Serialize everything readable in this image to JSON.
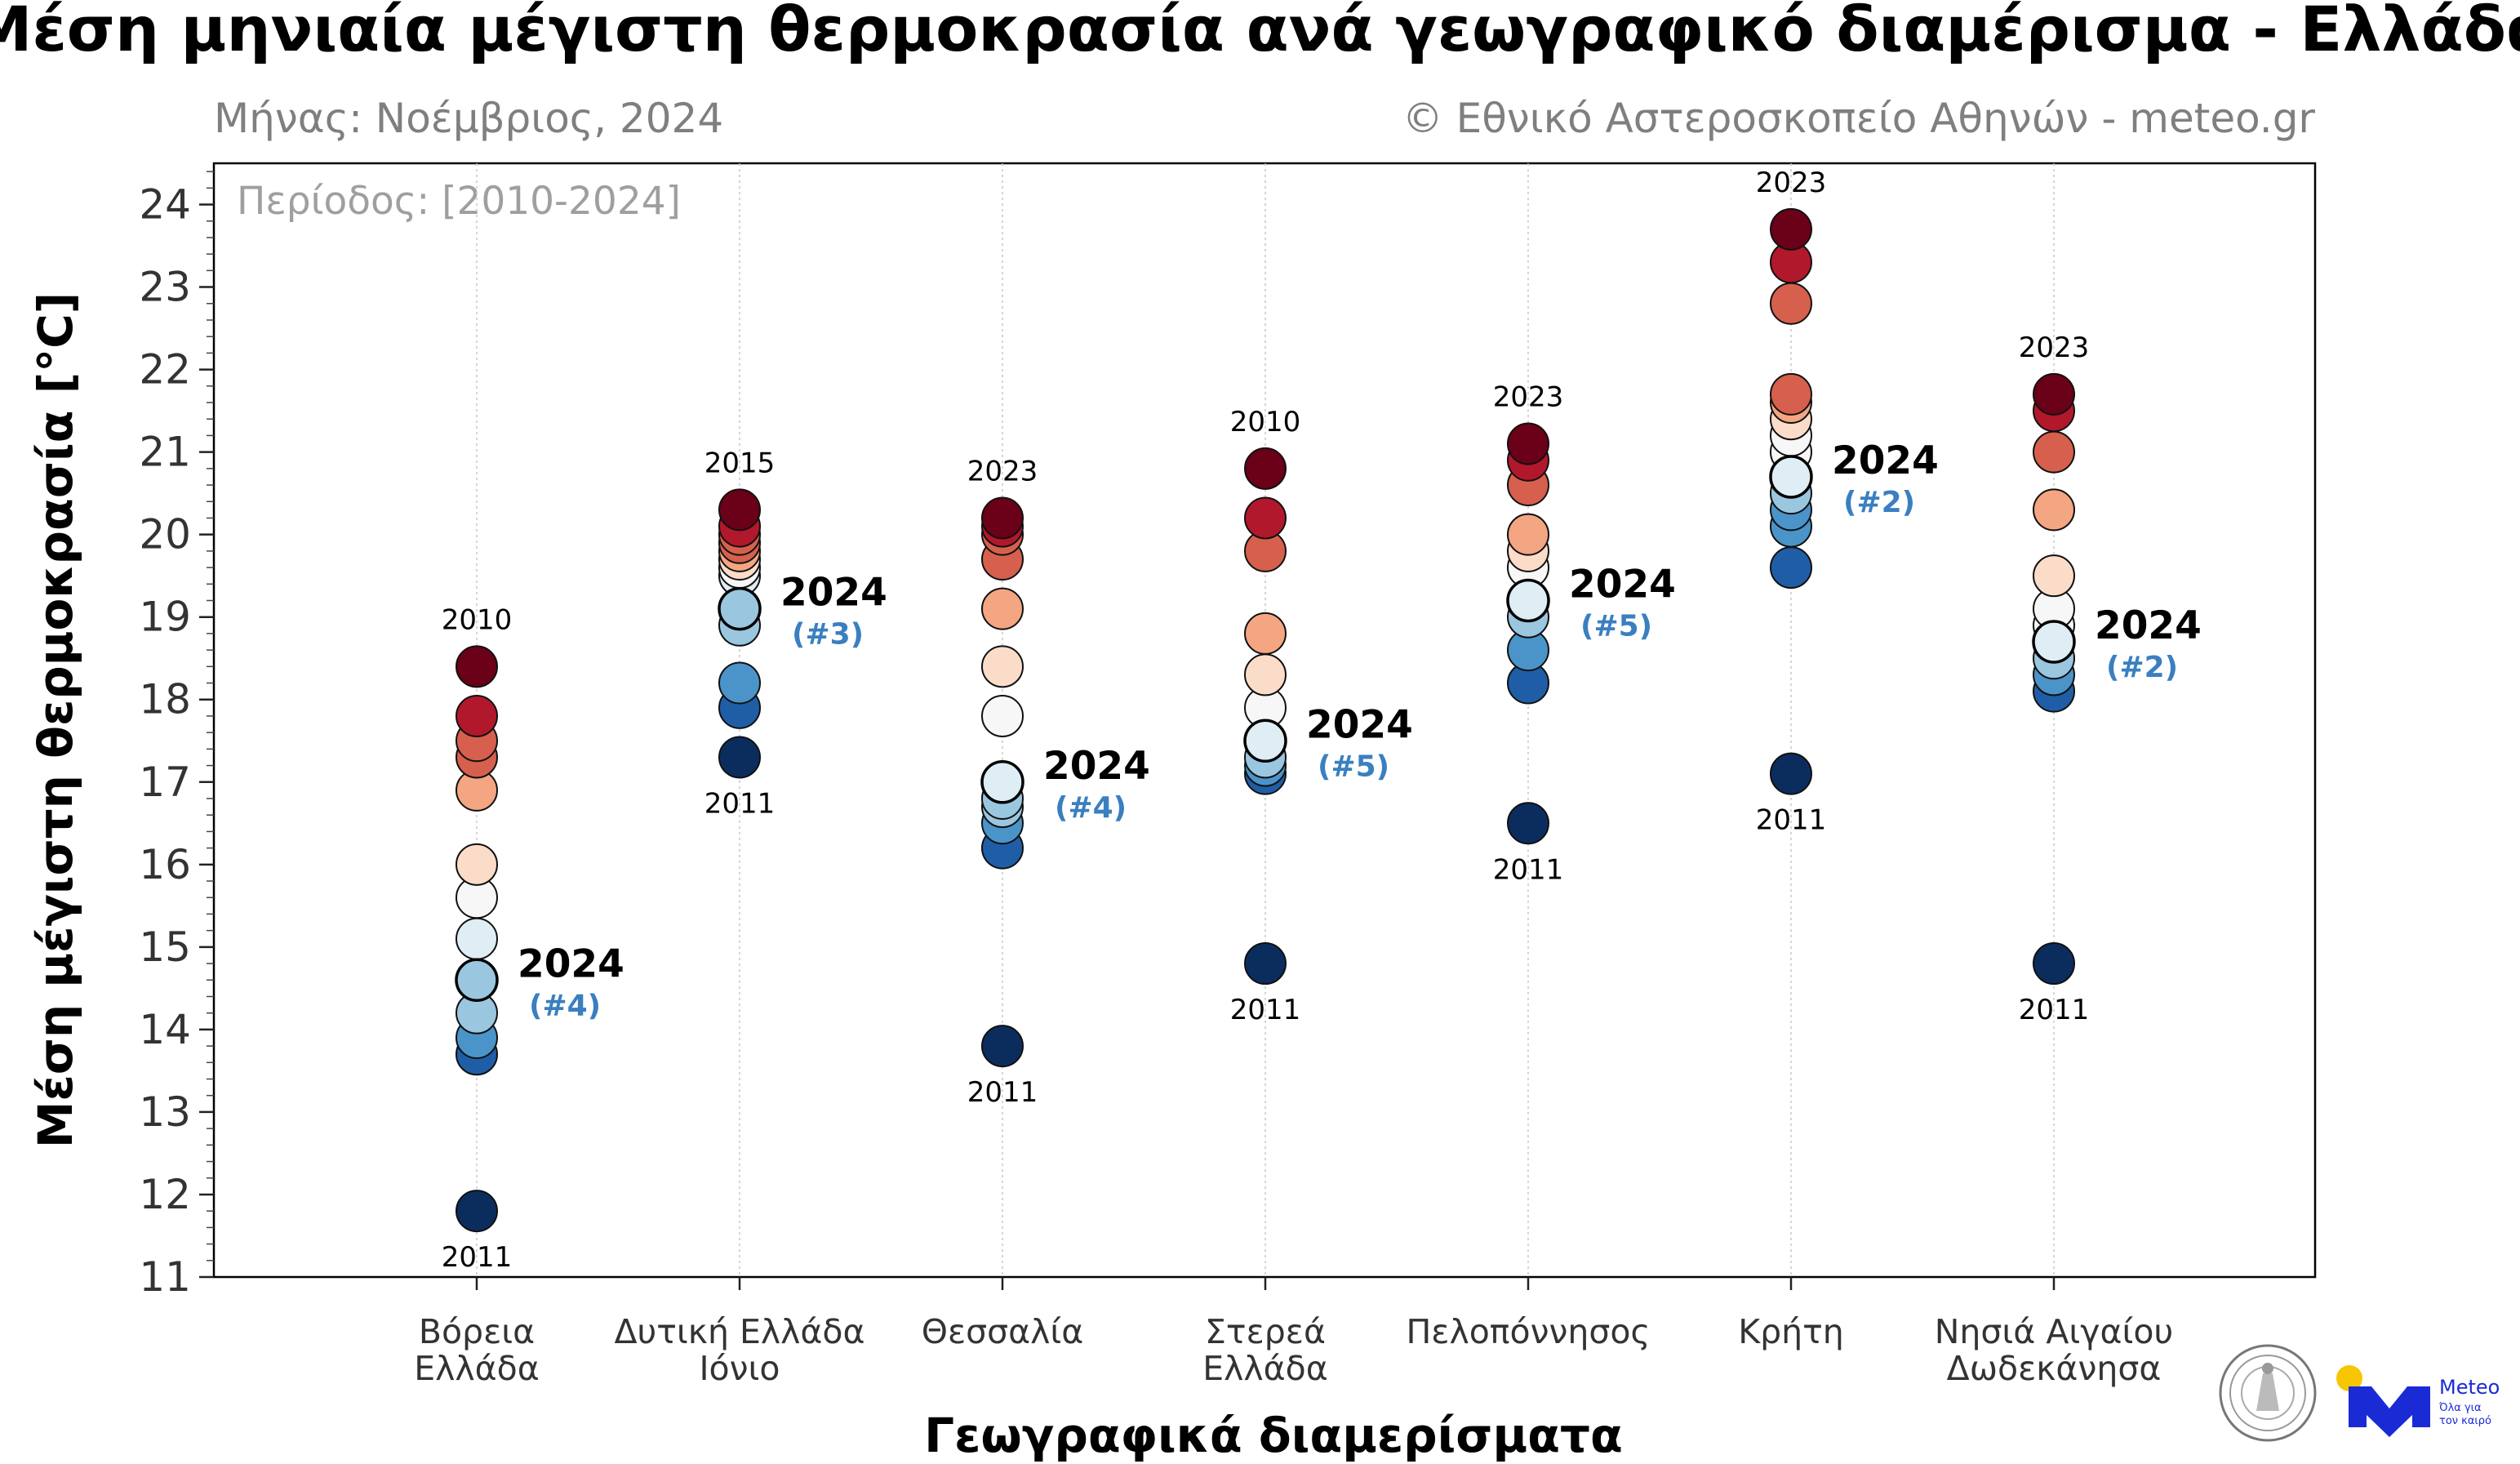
{
  "title": "Μέση μηνιαία μέγιστη θερμοκρασία ανά γεωγραφικό διαμέρισμα - Ελλάδα",
  "subtitle_left": "Μήνας: Νοέμβριος, 2024",
  "subtitle_right": "© Εθνικό Αστεροσκοπείο Αθηνών - meteo.gr",
  "logos": {
    "meteo_name": "Meteo",
    "meteo_slogan_1": "Όλα για",
    "meteo_slogan_2": "τον καιρό"
  },
  "chart_data": {
    "type": "scatter",
    "period_label": "Περίοδος: [2010-2024]",
    "xlabel": "Γεωγραφικά διαμερίσματα",
    "ylabel": "Μέση μέγιστη θερμοκρασία [°C]",
    "ylim": [
      11,
      24.5
    ],
    "yticks": [
      "11",
      "12",
      "13",
      "14",
      "15",
      "16",
      "17",
      "18",
      "19",
      "20",
      "21",
      "22",
      "23",
      "24"
    ],
    "current_year_label": "2024",
    "colormap": [
      "#0b2d5e",
      "#1f5ea6",
      "#4a94c9",
      "#9ac6e0",
      "#dfedf5",
      "#f7f7f7",
      "#fbdcc9",
      "#f4a582",
      "#d6604d",
      "#b2182b",
      "#6b0019"
    ],
    "regions": [
      {
        "name_lines": [
          "Βόρεια",
          "Ελλάδα"
        ],
        "values": [
          11.8,
          13.7,
          13.9,
          14.2,
          14.6,
          15.1,
          15.6,
          16.0,
          16.9,
          17.3,
          17.5,
          17.8,
          18.4
        ],
        "current": 14.6,
        "rank": "(#4)",
        "max_year": "2010",
        "min_year": "2011"
      },
      {
        "name_lines": [
          "Δυτική Ελλάδα",
          "Ιόνιο"
        ],
        "values": [
          17.3,
          17.9,
          18.2,
          18.9,
          19.1,
          19.5,
          19.6,
          19.7,
          19.8,
          19.9,
          20.0,
          20.1,
          20.3
        ],
        "current": 19.1,
        "rank": "(#3)",
        "max_year": "2015",
        "min_year": "2011"
      },
      {
        "name_lines": [
          "Θεσσαλία"
        ],
        "values": [
          13.8,
          16.2,
          16.5,
          16.7,
          16.8,
          17.0,
          17.8,
          18.4,
          19.1,
          19.7,
          20.0,
          20.1,
          20.2
        ],
        "current": 17.0,
        "rank": "(#4)",
        "max_year": "2023",
        "min_year": "2011"
      },
      {
        "name_lines": [
          "Στερεά",
          "Ελλάδα"
        ],
        "values": [
          14.8,
          17.1,
          17.2,
          17.3,
          17.5,
          17.9,
          18.3,
          18.8,
          19.8,
          20.2,
          20.8
        ],
        "current": 17.5,
        "rank": "(#5)",
        "max_year": "2010",
        "min_year": "2011"
      },
      {
        "name_lines": [
          "Πελοπόννησος"
        ],
        "values": [
          16.5,
          18.2,
          18.6,
          19.0,
          19.2,
          19.6,
          19.8,
          20.0,
          20.6,
          20.9,
          21.1
        ],
        "current": 19.2,
        "rank": "(#5)",
        "max_year": "2023",
        "min_year": "2011"
      },
      {
        "name_lines": [
          "Κρήτη"
        ],
        "values": [
          17.1,
          19.6,
          20.1,
          20.3,
          20.5,
          20.7,
          21.0,
          21.2,
          21.4,
          21.6,
          21.7,
          22.8,
          23.3,
          23.7
        ],
        "current": 20.7,
        "rank": "(#2)",
        "max_year": "2023",
        "min_year": "2011"
      },
      {
        "name_lines": [
          "Νησιά Αιγαίου",
          "Δωδεκάνησα"
        ],
        "values": [
          14.8,
          18.1,
          18.3,
          18.5,
          18.7,
          18.9,
          19.1,
          19.5,
          20.3,
          21.0,
          21.5,
          21.7
        ],
        "current": 18.7,
        "rank": "(#2)",
        "max_year": "2023",
        "min_year": "2011"
      }
    ]
  }
}
